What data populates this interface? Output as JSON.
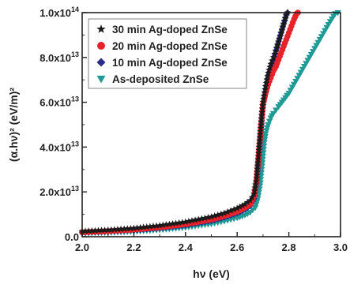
{
  "chart_data": {
    "type": "scatter",
    "title": "",
    "xlabel": "hν (eV)",
    "ylabel": "(α.hν)² (eV/m)²",
    "xlim": [
      2.0,
      3.0
    ],
    "ylim": [
      0,
      100000000000000.0
    ],
    "x_ticks": [
      {
        "value": 2.0,
        "label": "2.0"
      },
      {
        "value": 2.2,
        "label": "2.2"
      },
      {
        "value": 2.4,
        "label": "2.4"
      },
      {
        "value": 2.6,
        "label": "2.6"
      },
      {
        "value": 2.8,
        "label": "2.8"
      },
      {
        "value": 3.0,
        "label": "3.0"
      }
    ],
    "y_ticks": [
      {
        "value": 0,
        "label": "0.0"
      },
      {
        "value": 20000000000000.0,
        "label": "2.0x10",
        "exp": "13"
      },
      {
        "value": 40000000000000.0,
        "label": "4.0x10",
        "exp": "13"
      },
      {
        "value": 60000000000000.0,
        "label": "6.0x10",
        "exp": "13"
      },
      {
        "value": 80000000000000.0,
        "label": "8.0x10",
        "exp": "13"
      },
      {
        "value": 100000000000000.0,
        "label": "1.0x10",
        "exp": "14"
      }
    ],
    "grid": false,
    "legend_position": "top-left",
    "series": [
      {
        "name": "30 min Ag-doped ZnSe",
        "marker": "star",
        "color": "#1a1a1a",
        "points": [
          [
            2.0,
            2400000000000.0
          ],
          [
            2.1,
            3000000000000.0
          ],
          [
            2.2,
            3800000000000.0
          ],
          [
            2.3,
            5000000000000.0
          ],
          [
            2.4,
            6600000000000.0
          ],
          [
            2.5,
            8900000000000.0
          ],
          [
            2.55,
            10500000000000.0
          ],
          [
            2.6,
            12700000000000.0
          ],
          [
            2.63,
            14500000000000.0
          ],
          [
            2.65,
            16200000000000.0
          ],
          [
            2.665,
            19000000000000.0
          ],
          [
            2.675,
            26000000000000.0
          ],
          [
            2.68,
            33000000000000.0
          ],
          [
            2.685,
            40000000000000.0
          ],
          [
            2.69,
            47000000000000.0
          ],
          [
            2.695,
            54000000000000.0
          ],
          [
            2.7,
            60000000000000.0
          ],
          [
            2.71,
            67000000000000.0
          ],
          [
            2.72,
            73000000000000.0
          ],
          [
            2.73,
            77000000000000.0
          ],
          [
            2.74,
            80000000000000.0
          ],
          [
            2.75,
            83000000000000.0
          ],
          [
            2.76,
            87000000000000.0
          ],
          [
            2.77,
            91000000000000.0
          ],
          [
            2.78,
            95000000000000.0
          ],
          [
            2.79,
            99000000000000.0
          ],
          [
            2.795,
            100000000000000.0
          ]
        ]
      },
      {
        "name": "20 min Ag-doped ZnSe",
        "marker": "circle",
        "color": "#e8222a",
        "points": [
          [
            2.0,
            2000000000000.0
          ],
          [
            2.1,
            2500000000000.0
          ],
          [
            2.2,
            3200000000000.0
          ],
          [
            2.3,
            4200000000000.0
          ],
          [
            2.4,
            5600000000000.0
          ],
          [
            2.5,
            7700000000000.0
          ],
          [
            2.55,
            9200000000000.0
          ],
          [
            2.6,
            11200000000000.0
          ],
          [
            2.63,
            13000000000000.0
          ],
          [
            2.65,
            14500000000000.0
          ],
          [
            2.665,
            18000000000000.0
          ],
          [
            2.675,
            25000000000000.0
          ],
          [
            2.68,
            32000000000000.0
          ],
          [
            2.685,
            39000000000000.0
          ],
          [
            2.69,
            46000000000000.0
          ],
          [
            2.695,
            53000000000000.0
          ],
          [
            2.7,
            59000000000000.0
          ],
          [
            2.71,
            64000000000000.0
          ],
          [
            2.72,
            68000000000000.0
          ],
          [
            2.73,
            71000000000000.0
          ],
          [
            2.74,
            74000000000000.0
          ],
          [
            2.75,
            76000000000000.0
          ],
          [
            2.76,
            79000000000000.0
          ],
          [
            2.77,
            82000000000000.0
          ],
          [
            2.78,
            85000000000000.0
          ],
          [
            2.79,
            88000000000000.0
          ],
          [
            2.8,
            91000000000000.0
          ],
          [
            2.81,
            94000000000000.0
          ],
          [
            2.82,
            97000000000000.0
          ],
          [
            2.83,
            99500000000000.0
          ],
          [
            2.835,
            100000000000000.0
          ]
        ]
      },
      {
        "name": "10 min Ag-doped ZnSe",
        "marker": "diamond",
        "color": "#2b2b8c",
        "points": [
          [
            2.0,
            1800000000000.0
          ],
          [
            2.1,
            2300000000000.0
          ],
          [
            2.2,
            2900000000000.0
          ],
          [
            2.3,
            3800000000000.0
          ],
          [
            2.4,
            5100000000000.0
          ],
          [
            2.5,
            7100000000000.0
          ],
          [
            2.55,
            8600000000000.0
          ],
          [
            2.6,
            10500000000000.0
          ],
          [
            2.63,
            12200000000000.0
          ],
          [
            2.65,
            13800000000000.0
          ],
          [
            2.665,
            17000000000000.0
          ],
          [
            2.675,
            24000000000000.0
          ],
          [
            2.68,
            31000000000000.0
          ],
          [
            2.685,
            38000000000000.0
          ],
          [
            2.69,
            45000000000000.0
          ],
          [
            2.695,
            52000000000000.0
          ],
          [
            2.7,
            59000000000000.0
          ],
          [
            2.71,
            66000000000000.0
          ],
          [
            2.72,
            72000000000000.0
          ],
          [
            2.73,
            76000000000000.0
          ],
          [
            2.74,
            79000000000000.0
          ],
          [
            2.75,
            83000000000000.0
          ],
          [
            2.76,
            87000000000000.0
          ],
          [
            2.77,
            91000000000000.0
          ],
          [
            2.78,
            95000000000000.0
          ],
          [
            2.79,
            99000000000000.0
          ],
          [
            2.795,
            100000000000000.0
          ]
        ]
      },
      {
        "name": "As-deposited ZnSe",
        "marker": "triangle-down",
        "color": "#1f9a96",
        "points": [
          [
            2.0,
            1500000000000.0
          ],
          [
            2.1,
            1800000000000.0
          ],
          [
            2.2,
            2300000000000.0
          ],
          [
            2.3,
            3000000000000.0
          ],
          [
            2.4,
            4100000000000.0
          ],
          [
            2.5,
            5700000000000.0
          ],
          [
            2.55,
            6900000000000.0
          ],
          [
            2.6,
            8400000000000.0
          ],
          [
            2.63,
            9600000000000.0
          ],
          [
            2.65,
            10800000000000.0
          ],
          [
            2.67,
            13000000000000.0
          ],
          [
            2.68,
            17000000000000.0
          ],
          [
            2.69,
            24000000000000.0
          ],
          [
            2.695,
            30000000000000.0
          ],
          [
            2.7,
            36000000000000.0
          ],
          [
            2.705,
            42000000000000.0
          ],
          [
            2.71,
            46000000000000.0
          ],
          [
            2.72,
            50000000000000.0
          ],
          [
            2.73,
            53000000000000.0
          ],
          [
            2.74,
            55000000000000.0
          ],
          [
            2.75,
            56500000000000.0
          ],
          [
            2.76,
            58000000000000.0
          ],
          [
            2.78,
            61000000000000.0
          ],
          [
            2.8,
            64000000000000.0
          ],
          [
            2.82,
            68000000000000.0
          ],
          [
            2.84,
            72000000000000.0
          ],
          [
            2.86,
            76000000000000.0
          ],
          [
            2.88,
            80000000000000.0
          ],
          [
            2.9,
            84000000000000.0
          ],
          [
            2.92,
            88000000000000.0
          ],
          [
            2.94,
            92000000000000.0
          ],
          [
            2.96,
            96000000000000.0
          ],
          [
            2.98,
            99500000000000.0
          ],
          [
            2.99,
            100000000000000.0
          ]
        ]
      }
    ]
  }
}
